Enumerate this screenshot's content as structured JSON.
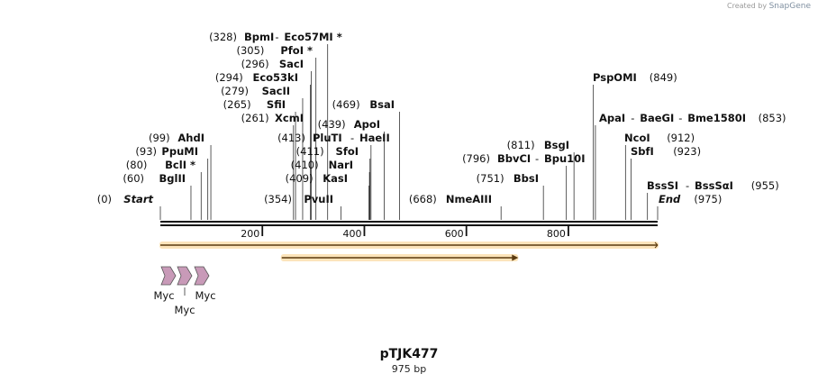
{
  "credit": {
    "prefix": "Created by",
    "brand": "SnapGene"
  },
  "plasmid": {
    "name": "pTJK477",
    "length_label": "975 bp",
    "length": 975
  },
  "ruler": {
    "ticks": [
      200,
      400,
      600,
      800
    ]
  },
  "sites": [
    {
      "pos": "(0)",
      "name": "Start",
      "italic": true,
      "bp": 0
    },
    {
      "pos": "(60)",
      "name": "BglII",
      "bp": 60
    },
    {
      "pos": "(80)",
      "name": "BclI *",
      "bp": 80
    },
    {
      "pos": "(93)",
      "name": "PpuMI",
      "bp": 93
    },
    {
      "pos": "(99)",
      "name": "AhdI",
      "bp": 99
    },
    {
      "pos": "(261)",
      "name": "XcmI",
      "bp": 261
    },
    {
      "pos": "(265)",
      "name": "SfiI",
      "bp": 265
    },
    {
      "pos": "(279)",
      "name": "SacII",
      "bp": 279
    },
    {
      "pos": "(294)",
      "name": "Eco53kI",
      "bp": 294
    },
    {
      "pos": "(296)",
      "name": "SacI",
      "bp": 296
    },
    {
      "pos": "(305)",
      "name": "PfoI *",
      "bp": 305
    },
    {
      "pos": "(328)",
      "name": "BpmI",
      "name2": "Eco57MI *",
      "bp": 328
    },
    {
      "pos": "(354)",
      "name": "PvuII",
      "bp": 354
    },
    {
      "pos": "(409)",
      "name": "KasI",
      "bp": 409
    },
    {
      "pos": "(410)",
      "name": "NarI",
      "bp": 410
    },
    {
      "pos": "(411)",
      "name": "SfoI",
      "bp": 411
    },
    {
      "pos": "(413)",
      "name": "PluTI",
      "name2": "HaeII",
      "bp": 413
    },
    {
      "pos": "(439)",
      "name": "ApoI",
      "bp": 439
    },
    {
      "pos": "(469)",
      "name": "BsaI",
      "bp": 469
    },
    {
      "pos": "(668)",
      "name": "NmeAIII",
      "bp": 668
    },
    {
      "pos": "(751)",
      "name": "BbsI",
      "bp": 751
    },
    {
      "pos": "(796)",
      "name": "BbvCI",
      "name2": "Bpu10I",
      "bp": 796
    },
    {
      "pos": "(811)",
      "name": "BsgI",
      "bp": 811
    },
    {
      "pos": "(849)",
      "name": "PspOMI",
      "bp": 849
    },
    {
      "pos": "(853)",
      "name": "ApaI",
      "name2": "BaeGI",
      "name3": "Bme1580I",
      "bp": 853
    },
    {
      "pos": "(912)",
      "name": "NcoI",
      "bp": 912
    },
    {
      "pos": "(923)",
      "name": "SbfI",
      "bp": 923
    },
    {
      "pos": "(955)",
      "name": "BssSI",
      "name2": "BssSαI",
      "bp": 955
    },
    {
      "pos": "(975)",
      "name": "End",
      "italic": true,
      "bp": 975
    }
  ],
  "features": [
    {
      "label": "Myc",
      "color": "#c89ab8"
    },
    {
      "label": "Myc",
      "color": "#c89ab8"
    },
    {
      "label": "Myc",
      "color": "#c89ab8"
    }
  ],
  "orfs": [
    {
      "start": 0,
      "end": 975,
      "arrow": false
    },
    {
      "start": 238,
      "end": 700,
      "arrow": true
    }
  ],
  "colors": {
    "orf_fill": "#f7b23b",
    "orf_stroke": "#5a3a10",
    "backbone": "#111111",
    "feature": "#c89ab8"
  }
}
